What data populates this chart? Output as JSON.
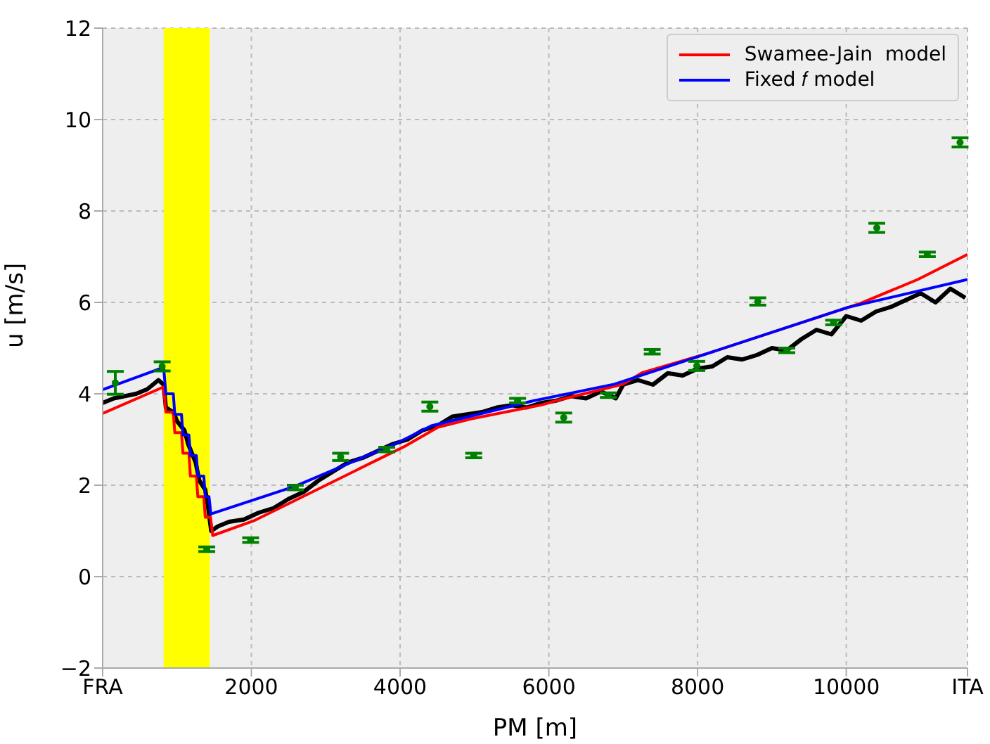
{
  "chart_data": {
    "type": "line",
    "xlabel": "PM [m]",
    "ylabel": "u [m/s]",
    "xlim": [
      0,
      11630
    ],
    "xticks": [
      {
        "value": 0,
        "label": "FRA"
      },
      2000,
      4000,
      6000,
      8000,
      10000,
      {
        "value": 11630,
        "label": "ITA"
      }
    ],
    "ylim": [
      -2,
      12
    ],
    "yticks": [
      {
        "value": -2,
        "label": "−2"
      },
      0,
      2,
      4,
      6,
      8,
      10,
      12
    ],
    "grid": true,
    "legend": "top right",
    "marker": "none",
    "line_style": "solid",
    "bands": [
      {
        "axis": "x",
        "from": 820,
        "to": 1440,
        "color": "#ffff00"
      }
    ],
    "series": [
      {
        "color": "#000000",
        "x": [
          0,
          150,
          300,
          450,
          600,
          750,
          820,
          850,
          950,
          1000,
          1100,
          1150,
          1250,
          1300,
          1380,
          1420,
          1460,
          1550,
          1700,
          1900,
          2100,
          2300,
          2500,
          2700,
          2900,
          3100,
          3300,
          3500,
          3700,
          3900,
          4100,
          4300,
          4500,
          4700,
          4900,
          5100,
          5300,
          5500,
          5700,
          5900,
          6100,
          6300,
          6500,
          6700,
          6900,
          7000,
          7200,
          7400,
          7600,
          7800,
          8000,
          8200,
          8400,
          8600,
          8800,
          9000,
          9200,
          9400,
          9600,
          9800,
          10000,
          10200,
          10400,
          10600,
          10800,
          11000,
          11200,
          11400,
          11600
        ],
        "values": [
          3.8,
          3.9,
          3.95,
          4.0,
          4.1,
          4.3,
          4.2,
          3.7,
          3.6,
          3.4,
          3.2,
          2.9,
          2.5,
          2.1,
          1.9,
          1.5,
          1.0,
          1.1,
          1.2,
          1.25,
          1.4,
          1.5,
          1.7,
          1.85,
          2.1,
          2.3,
          2.5,
          2.6,
          2.75,
          2.9,
          3.0,
          3.2,
          3.3,
          3.5,
          3.55,
          3.6,
          3.7,
          3.75,
          3.7,
          3.8,
          3.85,
          3.95,
          3.9,
          4.05,
          3.9,
          4.2,
          4.3,
          4.2,
          4.45,
          4.4,
          4.55,
          4.6,
          4.8,
          4.75,
          4.85,
          5.0,
          4.95,
          5.2,
          5.4,
          5.3,
          5.7,
          5.6,
          5.8,
          5.9,
          6.05,
          6.2,
          6.0,
          6.3,
          6.1
        ]
      },
      {
        "name": "Swamee-Jain  model",
        "color": "#ff0000",
        "x": [
          0,
          820,
          850,
          950,
          970,
          1060,
          1080,
          1160,
          1180,
          1260,
          1280,
          1360,
          1380,
          1450,
          1480,
          2030,
          4050,
          4510,
          4950,
          5910,
          6100,
          7000,
          7250,
          8150,
          10190,
          10960,
          11630
        ],
        "values": [
          3.57,
          4.15,
          3.6,
          3.6,
          3.15,
          3.15,
          2.7,
          2.7,
          2.2,
          2.2,
          1.75,
          1.75,
          1.3,
          1.3,
          0.9,
          1.22,
          2.84,
          3.27,
          3.45,
          3.76,
          3.85,
          4.21,
          4.46,
          4.89,
          5.98,
          6.5,
          7.05
        ]
      },
      {
        "name": "Fixed 𝑓 model",
        "color": "#0000ff",
        "x": [
          0,
          820,
          850,
          950,
          970,
          1060,
          1080,
          1160,
          1180,
          1260,
          1280,
          1360,
          1380,
          1430,
          1455,
          2590,
          3970,
          4420,
          5800,
          6880,
          8150,
          10020,
          11630
        ],
        "values": [
          4.09,
          4.58,
          4.0,
          4.0,
          3.55,
          3.55,
          3.1,
          3.1,
          2.65,
          2.65,
          2.2,
          2.2,
          1.75,
          1.75,
          1.37,
          1.98,
          2.93,
          3.3,
          3.85,
          4.21,
          4.89,
          5.89,
          6.5
        ]
      },
      {
        "type": "scatter",
        "color": "#008000",
        "marker": "circle",
        "x": [
          170,
          800,
          1400,
          1990,
          2590,
          3200,
          3820,
          4400,
          4990,
          5580,
          6200,
          6800,
          7390,
          7990,
          8810,
          9200,
          9830,
          10410,
          11090,
          11530
        ],
        "values": [
          4.24,
          4.6,
          0.6,
          0.8,
          1.95,
          2.62,
          2.78,
          3.72,
          2.65,
          3.85,
          3.48,
          3.97,
          4.92,
          4.61,
          6.02,
          4.95,
          5.56,
          7.63,
          7.05,
          9.5
        ],
        "errors": [
          0.25,
          0.1,
          0.05,
          0.05,
          0.05,
          0.08,
          0.05,
          0.1,
          0.05,
          0.05,
          0.1,
          0.05,
          0.05,
          0.1,
          0.08,
          0.05,
          0.05,
          0.1,
          0.05,
          0.1
        ]
      }
    ]
  }
}
